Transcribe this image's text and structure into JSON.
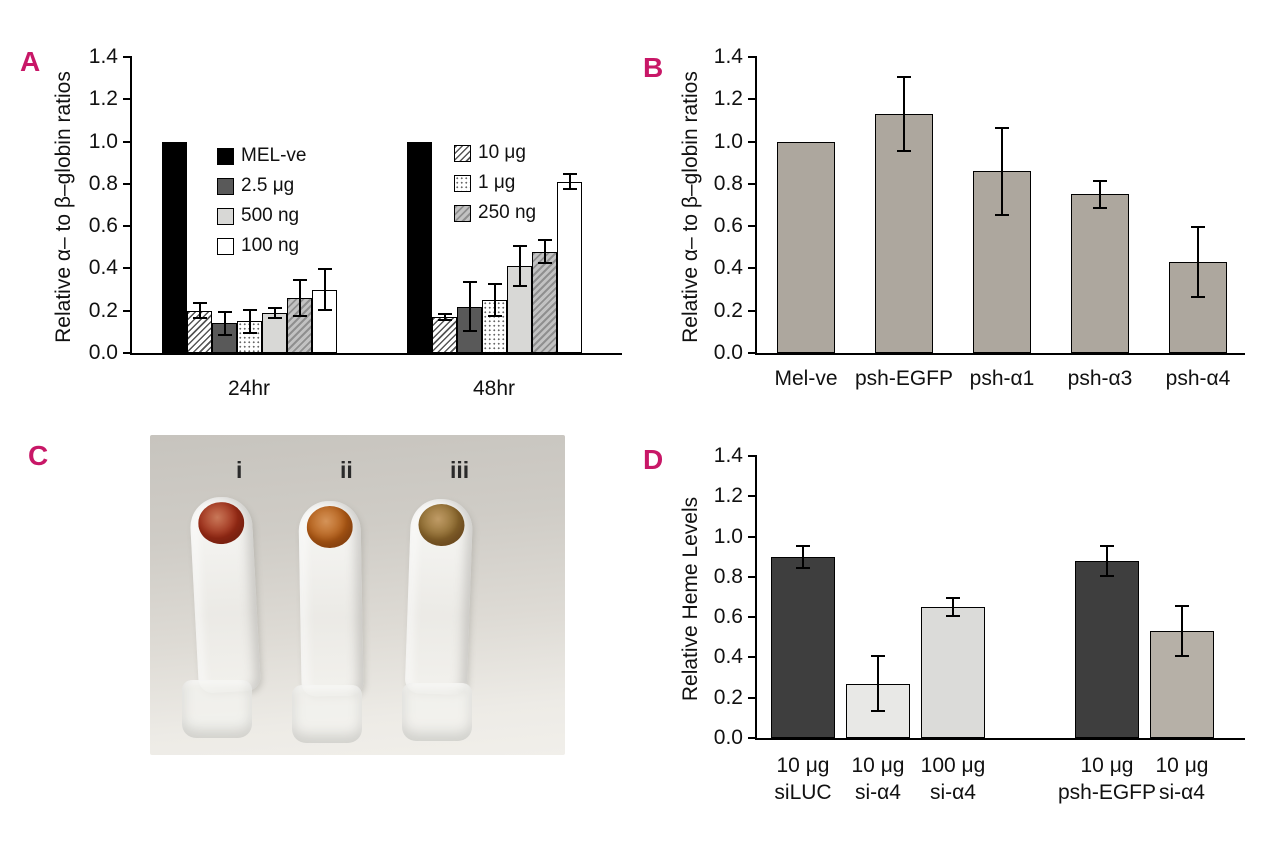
{
  "colors": {
    "panel_letter": "#c81767",
    "background": "#ffffff"
  },
  "panels": {
    "a": {
      "letter": "A"
    },
    "b": {
      "letter": "B"
    },
    "c": {
      "letter": "C",
      "tubes": [
        {
          "label": "i",
          "pellet_color": "#9c2b16"
        },
        {
          "label": "ii",
          "pellet_color": "#b25c15"
        },
        {
          "label": "iii",
          "pellet_color": "#8b6a2e"
        }
      ]
    },
    "d": {
      "letter": "D"
    }
  },
  "chart_data": [
    {
      "id": "chart-a",
      "type": "bar",
      "ylabel": "Relative α– to β–globin ratios",
      "xlabel": "",
      "ylim": [
        0,
        1.4
      ],
      "ytick_step": 0.2,
      "grid": false,
      "groups": [
        {
          "label": [
            "24hr"
          ],
          "bars": [
            {
              "series": "MEL-ve",
              "value": 1.0,
              "err": 0,
              "fill": "black"
            },
            {
              "series": "10 μg",
              "value": 0.2,
              "err": 0.04,
              "fill": "hatch"
            },
            {
              "series": "2.5 μg",
              "value": 0.14,
              "err": 0.06,
              "fill": "darkgray"
            },
            {
              "series": "1 μg",
              "value": 0.15,
              "err": 0.06,
              "fill": "dotted"
            },
            {
              "series": "500 ng",
              "value": 0.19,
              "err": 0.03,
              "fill": "lightgray"
            },
            {
              "series": "250 ng",
              "value": 0.26,
              "err": 0.09,
              "fill": "grayhatch"
            },
            {
              "series": "100 ng",
              "value": 0.3,
              "err": 0.1,
              "fill": "white"
            }
          ]
        },
        {
          "label": [
            "48hr"
          ],
          "bars": [
            {
              "series": "MEL-ve",
              "value": 1.0,
              "err": 0,
              "fill": "black"
            },
            {
              "series": "10 μg",
              "value": 0.17,
              "err": 0.02,
              "fill": "hatch"
            },
            {
              "series": "2.5 μg",
              "value": 0.22,
              "err": 0.12,
              "fill": "darkgray"
            },
            {
              "series": "1 μg",
              "value": 0.25,
              "err": 0.08,
              "fill": "dotted"
            },
            {
              "series": "500 ng",
              "value": 0.41,
              "err": 0.1,
              "fill": "lightgray"
            },
            {
              "series": "250 ng",
              "value": 0.48,
              "err": 0.06,
              "fill": "grayhatch"
            },
            {
              "series": "100 ng",
              "value": 0.81,
              "err": 0.04,
              "fill": "white"
            }
          ]
        }
      ],
      "legends": [
        {
          "entries": [
            {
              "label": "MEL-ve",
              "fill": "black"
            },
            {
              "label": "2.5 μg",
              "fill": "darkgray"
            },
            {
              "label": "500 ng",
              "fill": "lightgray"
            },
            {
              "label": "100 ng",
              "fill": "white"
            }
          ]
        },
        {
          "entries": [
            {
              "label": "10 μg",
              "fill": "hatch"
            },
            {
              "label": "1 μg",
              "fill": "dotted"
            },
            {
              "label": "250 ng",
              "fill": "grayhatch"
            }
          ]
        }
      ]
    },
    {
      "id": "chart-b",
      "type": "bar",
      "ylabel": "Relative α– to β–globin ratios",
      "xlabel": "",
      "ylim": [
        0,
        1.4
      ],
      "ytick_step": 0.2,
      "grid": false,
      "groups": [
        {
          "label": [
            "Mel-ve"
          ],
          "bars": [
            {
              "value": 1.0,
              "err": 0,
              "fill": "tan"
            }
          ]
        },
        {
          "label": [
            "psh-EGFP"
          ],
          "bars": [
            {
              "value": 1.13,
              "err": 0.18,
              "fill": "tan"
            }
          ]
        },
        {
          "label": [
            "psh-α1"
          ],
          "bars": [
            {
              "value": 0.86,
              "err": 0.21,
              "fill": "tan"
            }
          ]
        },
        {
          "label": [
            "psh-α3"
          ],
          "bars": [
            {
              "value": 0.75,
              "err": 0.07,
              "fill": "tan"
            }
          ]
        },
        {
          "label": [
            "psh-α4"
          ],
          "bars": [
            {
              "value": 0.43,
              "err": 0.17,
              "fill": "tan"
            }
          ]
        }
      ]
    },
    {
      "id": "chart-d",
      "type": "bar",
      "ylabel": "Relative Heme Levels",
      "xlabel": "",
      "ylim": [
        0,
        1.4
      ],
      "ytick_step": 0.2,
      "grid": false,
      "groups": [
        {
          "label": [
            "10 μg",
            "siLUC"
          ],
          "bars": [
            {
              "value": 0.9,
              "err": 0.06,
              "fill": "dark"
            }
          ]
        },
        {
          "label": [
            "10 μg",
            "si-α4"
          ],
          "bars": [
            {
              "value": 0.27,
              "err": 0.14,
              "fill": "vlight"
            }
          ]
        },
        {
          "label": [
            "100 μg",
            "si-α4"
          ],
          "bars": [
            {
              "value": 0.65,
              "err": 0.05,
              "fill": "light"
            }
          ]
        },
        {
          "label": [
            "10 μg",
            "psh-EGFP"
          ],
          "bars": [
            {
              "value": 0.88,
              "err": 0.08,
              "fill": "dark"
            }
          ]
        },
        {
          "label": [
            "10 μg",
            "si-α4"
          ],
          "bars": [
            {
              "value": 0.53,
              "err": 0.13,
              "fill": "midgray"
            }
          ]
        }
      ]
    }
  ]
}
